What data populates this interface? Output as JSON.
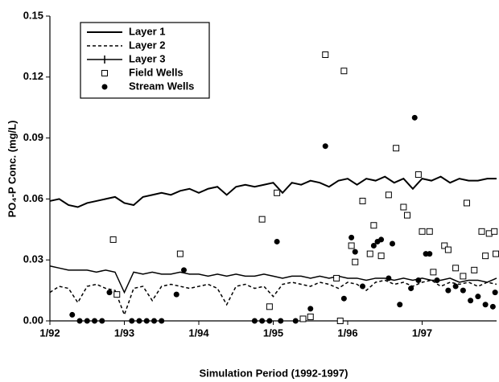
{
  "chart_data": {
    "type": "line-scatter",
    "xlabel": "Simulation Period (1992-1997)",
    "ylabel": "PO₄-P Conc. (mg/L)",
    "xlim": [
      1992,
      1998
    ],
    "ylim": [
      0,
      0.15
    ],
    "xticks": [
      {
        "value": 1992,
        "label": "1/92"
      },
      {
        "value": 1993,
        "label": "1/93"
      },
      {
        "value": 1994,
        "label": "1/94"
      },
      {
        "value": 1995,
        "label": "1/95"
      },
      {
        "value": 1996,
        "label": "1/96"
      },
      {
        "value": 1997,
        "label": "1/97"
      }
    ],
    "yticks": [
      {
        "value": 0,
        "label": "0.00"
      },
      {
        "value": 0.03,
        "label": "0.03"
      },
      {
        "value": 0.06,
        "label": "0.06"
      },
      {
        "value": 0.09,
        "label": "0.09"
      },
      {
        "value": 0.12,
        "label": "0.12"
      },
      {
        "value": 0.15,
        "label": "0.15"
      }
    ],
    "legend": "upper left",
    "x": [
      1992,
      1992.125,
      1992.25,
      1992.375,
      1992.5,
      1992.625,
      1992.75,
      1992.875,
      1993,
      1993.125,
      1993.25,
      1993.375,
      1993.5,
      1993.625,
      1993.75,
      1993.875,
      1994,
      1994.125,
      1994.25,
      1994.375,
      1994.5,
      1994.625,
      1994.75,
      1994.875,
      1995,
      1995.125,
      1995.25,
      1995.375,
      1995.5,
      1995.625,
      1995.75,
      1995.875,
      1996,
      1996.125,
      1996.25,
      1996.375,
      1996.5,
      1996.625,
      1996.75,
      1996.875,
      1997,
      1997.125,
      1997.25,
      1997.375,
      1997.5,
      1997.625,
      1997.75,
      1997.875,
      1998
    ],
    "series": [
      {
        "name": "Layer 1",
        "kind": "line",
        "style": "solid",
        "color": "#000000",
        "values": [
          0.059,
          0.06,
          0.057,
          0.056,
          0.058,
          0.059,
          0.06,
          0.061,
          0.058,
          0.057,
          0.061,
          0.062,
          0.063,
          0.062,
          0.064,
          0.065,
          0.063,
          0.065,
          0.066,
          0.062,
          0.066,
          0.067,
          0.066,
          0.067,
          0.068,
          0.063,
          0.068,
          0.067,
          0.069,
          0.068,
          0.066,
          0.069,
          0.07,
          0.067,
          0.07,
          0.069,
          0.071,
          0.068,
          0.07,
          0.065,
          0.07,
          0.069,
          0.071,
          0.068,
          0.07,
          0.069,
          0.069,
          0.07,
          0.07
        ]
      },
      {
        "name": "Layer 2",
        "kind": "line",
        "style": "dashed",
        "color": "#000000",
        "values": [
          0.014,
          0.017,
          0.016,
          0.009,
          0.017,
          0.018,
          0.016,
          0.015,
          0.003,
          0.016,
          0.017,
          0.01,
          0.017,
          0.018,
          0.017,
          0.016,
          0.017,
          0.018,
          0.016,
          0.008,
          0.017,
          0.018,
          0.016,
          0.017,
          0.012,
          0.018,
          0.019,
          0.018,
          0.017,
          0.019,
          0.018,
          0.016,
          0.019,
          0.018,
          0.015,
          0.019,
          0.02,
          0.018,
          0.019,
          0.017,
          0.019,
          0.02,
          0.017,
          0.019,
          0.018,
          0.019,
          0.017,
          0.019,
          0.018
        ]
      },
      {
        "name": "Layer 3",
        "kind": "line",
        "style": "cross",
        "color": "#000000",
        "values": [
          0.027,
          0.026,
          0.025,
          0.025,
          0.025,
          0.024,
          0.025,
          0.024,
          0.014,
          0.024,
          0.023,
          0.024,
          0.023,
          0.023,
          0.024,
          0.023,
          0.023,
          0.022,
          0.023,
          0.022,
          0.023,
          0.022,
          0.022,
          0.023,
          0.022,
          0.021,
          0.022,
          0.022,
          0.021,
          0.022,
          0.021,
          0.022,
          0.021,
          0.021,
          0.02,
          0.021,
          0.021,
          0.02,
          0.021,
          0.02,
          0.021,
          0.02,
          0.02,
          0.021,
          0.019,
          0.02,
          0.02,
          0.019,
          0.021
        ]
      },
      {
        "name": "Field Wells",
        "kind": "scatter",
        "marker": "square-open",
        "color": "#000000",
        "x": [
          1992.85,
          1992.9,
          1993.75,
          1994.85,
          1994.95,
          1995.05,
          1995.4,
          1995.5,
          1995.7,
          1995.85,
          1995.9,
          1995.95,
          1996.05,
          1996.1,
          1996.2,
          1996.3,
          1996.35,
          1996.45,
          1996.55,
          1996.65,
          1996.75,
          1996.8,
          1996.95,
          1997.0,
          1997.1,
          1997.15,
          1997.3,
          1997.35,
          1997.45,
          1997.55,
          1997.6,
          1997.7,
          1997.8,
          1997.85,
          1997.9,
          1997.97,
          1997.99
        ],
        "values": [
          0.04,
          0.013,
          0.033,
          0.05,
          0.007,
          0.063,
          0.001,
          0.002,
          0.131,
          0.021,
          0.0,
          0.123,
          0.037,
          0.029,
          0.059,
          0.033,
          0.047,
          0.032,
          0.062,
          0.085,
          0.056,
          0.052,
          0.072,
          0.044,
          0.044,
          0.024,
          0.037,
          0.035,
          0.026,
          0.022,
          0.058,
          0.025,
          0.044,
          0.032,
          0.043,
          0.044,
          0.033
        ]
      },
      {
        "name": "Stream Wells",
        "kind": "scatter",
        "marker": "circle-filled",
        "color": "#000000",
        "x": [
          1992.3,
          1992.4,
          1992.5,
          1992.6,
          1992.7,
          1992.8,
          1993.1,
          1993.2,
          1993.3,
          1993.4,
          1993.5,
          1993.7,
          1993.8,
          1994.75,
          1994.85,
          1994.95,
          1995.05,
          1995.1,
          1995.3,
          1995.5,
          1995.7,
          1995.95,
          1996.05,
          1996.1,
          1996.2,
          1996.35,
          1996.4,
          1996.45,
          1996.55,
          1996.6,
          1996.7,
          1996.85,
          1996.9,
          1996.95,
          1997.05,
          1997.1,
          1997.2,
          1997.35,
          1997.45,
          1997.55,
          1997.65,
          1997.75,
          1997.85,
          1997.95,
          1997.98
        ],
        "values": [
          0.003,
          0.0,
          0.0,
          0.0,
          0.0,
          0.014,
          0.0,
          0.0,
          0.0,
          0.0,
          0.0,
          0.013,
          0.025,
          0.0,
          0.0,
          0.0,
          0.039,
          0.0,
          0.0,
          0.006,
          0.086,
          0.011,
          0.041,
          0.034,
          0.017,
          0.037,
          0.039,
          0.04,
          0.021,
          0.038,
          0.008,
          0.016,
          0.1,
          0.02,
          0.033,
          0.033,
          0.02,
          0.015,
          0.017,
          0.015,
          0.01,
          0.012,
          0.008,
          0.007,
          0.014
        ]
      }
    ]
  }
}
